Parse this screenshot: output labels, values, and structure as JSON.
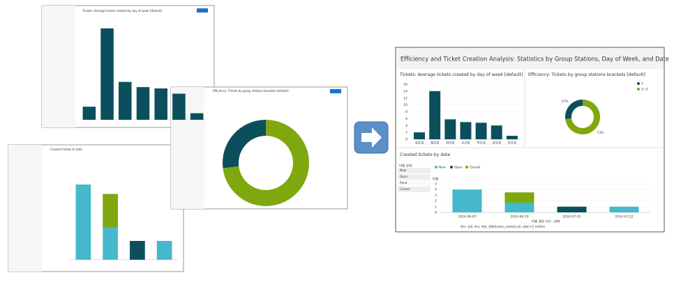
{
  "dashboard": {
    "title": "Efficiency and Ticket Creation Analysis: Statistics by Group Stations, Day of Week, and Date",
    "filter_header": "티켓 상태",
    "filter_items": [
      "New",
      "Open",
      "Pend",
      "Closed"
    ],
    "footer": "필터: 상태, 회사, 위험, 개체(tickets_created_at), 날짜/시간 프로퍼티"
  },
  "chart_data": [
    {
      "type": "bar",
      "title": "Tickets: Average tickets created by day of week [default]",
      "categories": [
        "일요일",
        "월요일",
        "화요일",
        "수요일",
        "목요일",
        "금요일",
        "토요일"
      ],
      "values": [
        2,
        14,
        5.8,
        5,
        4.8,
        4,
        1
      ],
      "color": "#0b4f5c",
      "ylim": [
        0,
        16
      ],
      "yticks": [
        0,
        2,
        4,
        6,
        8,
        10,
        12,
        14,
        16
      ],
      "grid": true
    },
    {
      "type": "pie",
      "donut": true,
      "title": "Efficiency: Tickets by group stations brackets [default]",
      "categories": [
        "1",
        "2~3"
      ],
      "values": [
        27,
        73
      ],
      "value_labels": [
        "27%",
        "73%"
      ],
      "colors": [
        "#0b4f5c",
        "#7ea80e"
      ]
    },
    {
      "type": "stacked_bar",
      "title": "Created tickets by date",
      "categories": [
        "2024-06-07",
        "2024-06-10",
        "2024-07-01",
        "2024-07-22"
      ],
      "series": [
        {
          "name": "New",
          "color": "#45b8cc",
          "values": [
            4,
            1.7,
            null,
            1
          ]
        },
        {
          "name": "Open",
          "color": "#0b4f5c",
          "values": [
            null,
            null,
            1,
            null
          ]
        },
        {
          "name": "Closed",
          "color": "#7ea80e",
          "values": [
            null,
            1.8,
            null,
            null
          ]
        }
      ],
      "xlabel": "티켓 생성 시간 - 날짜",
      "ylabel": "티켓",
      "ylim": [
        0,
        5
      ],
      "yticks": [
        0,
        1,
        2,
        3,
        4,
        5
      ],
      "grid": true
    },
    {
      "type": "bar",
      "title": "Tickets: Average tickets created by day of week [default]",
      "values": [
        2,
        14,
        5.8,
        5,
        4.8,
        4,
        1
      ],
      "color": "#0b4f5c",
      "ylim": [
        0,
        16
      ]
    },
    {
      "type": "pie",
      "donut": true,
      "title": "Efficiency: Tickets by group stations brackets [default]",
      "values": [
        27,
        73
      ],
      "colors": [
        "#0b4f5c",
        "#7ea80e"
      ]
    },
    {
      "type": "stacked_bar",
      "title": "Created tickets to date",
      "series": [
        {
          "color": "#45b8cc",
          "values": [
            4,
            1.7,
            null,
            1
          ]
        },
        {
          "color": "#0b4f5c",
          "values": [
            null,
            null,
            1,
            null
          ]
        },
        {
          "color": "#7ea80e",
          "values": [
            null,
            1.8,
            null,
            null
          ]
        }
      ],
      "ylim": [
        0,
        5
      ]
    }
  ]
}
